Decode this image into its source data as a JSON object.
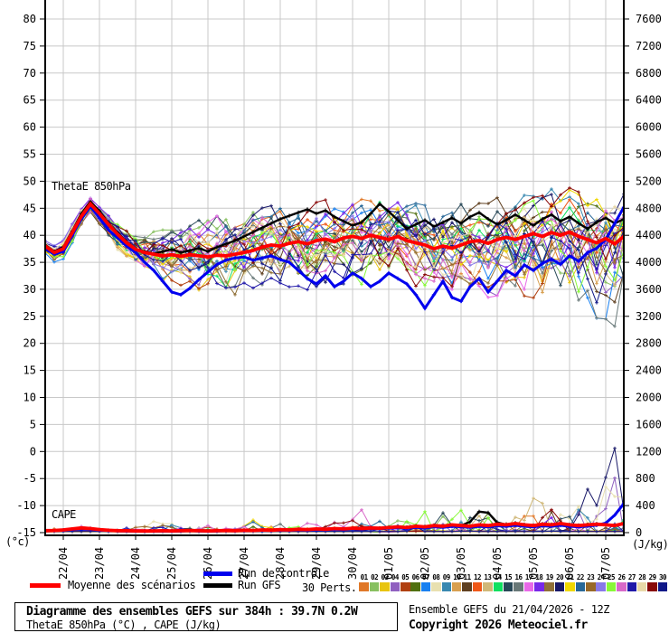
{
  "chart_data": {
    "type": "line",
    "title_annotations": {
      "thetae": "ThetaE 850hPa",
      "cape": "CAPE"
    },
    "x_axis": {
      "hours": 384,
      "step_hours": 6,
      "day_labels": [
        "22/04",
        "23/04",
        "24/04",
        "25/04",
        "26/04",
        "27/04",
        "28/04",
        "29/04",
        "30/04",
        "01/05",
        "02/05",
        "03/05",
        "04/05",
        "05/05",
        "06/05",
        "07/05"
      ]
    },
    "left_axis": {
      "unit": "(°c)",
      "min": -15,
      "max": 80,
      "step": 5
    },
    "right_axis": {
      "unit": "(J/kg)",
      "min": 0,
      "max": 7600,
      "step": 400
    },
    "grid": true,
    "legend_position": "bottom",
    "series": {
      "mean": {
        "label": "Moyenne des scénarios",
        "color": "#ff0000",
        "thetae": [
          38.0,
          36.8,
          37.5,
          40.5,
          43.5,
          45.8,
          44.0,
          42.0,
          40.2,
          38.6,
          37.4,
          36.8,
          36.5,
          36.2,
          36.4,
          36.1,
          36.4,
          36.2,
          36.0,
          36.3,
          36.2,
          36.5,
          36.8,
          37.2,
          37.8,
          38.2,
          38.0,
          38.5,
          38.8,
          38.4,
          39.0,
          39.3,
          38.8,
          39.5,
          39.8,
          39.4,
          40.0,
          39.6,
          39.2,
          39.8,
          39.0,
          38.6,
          38.2,
          37.5,
          38.0,
          37.6,
          38.2,
          38.8,
          39.0,
          38.5,
          39.2,
          39.6,
          39.2,
          39.8,
          40.3,
          39.8,
          40.5,
          40.0,
          40.6,
          39.8,
          39.2,
          38.6,
          39.4,
          38.4,
          39.8
        ],
        "cape": [
          30,
          32,
          40,
          55,
          70,
          60,
          45,
          35,
          30,
          28,
          25,
          24,
          26,
          28,
          25,
          28,
          32,
          28,
          25,
          28,
          32,
          30,
          36,
          32,
          40,
          36,
          44,
          40,
          50,
          45,
          55,
          50,
          60,
          55,
          65,
          60,
          70,
          65,
          75,
          85,
          75,
          95,
          85,
          105,
          95,
          115,
          105,
          95,
          115,
          105,
          125,
          115,
          135,
          115,
          105,
          125,
          115,
          135,
          115,
          105,
          115,
          125,
          115,
          105,
          135
        ]
      },
      "control": {
        "label": "Run de contrôle",
        "color": "#0000ee",
        "thetae": [
          37.5,
          36.5,
          37.0,
          40.0,
          43.0,
          45.3,
          43.2,
          41.0,
          39.5,
          38.0,
          36.8,
          35.0,
          33.5,
          31.5,
          29.5,
          29.0,
          30.2,
          31.8,
          33.2,
          34.6,
          35.4,
          35.8,
          36.0,
          35.4,
          35.8,
          36.2,
          35.5,
          35.0,
          33.5,
          32.0,
          31.0,
          32.5,
          30.5,
          31.5,
          33.0,
          32.0,
          30.5,
          31.5,
          33.0,
          32.0,
          31.0,
          29.0,
          26.5,
          29.0,
          31.5,
          28.5,
          27.8,
          30.5,
          32.0,
          29.5,
          31.5,
          33.5,
          32.5,
          34.5,
          33.5,
          34.8,
          35.6,
          34.6,
          36.2,
          35.2,
          36.8,
          37.6,
          39.2,
          42.2,
          45.2
        ],
        "cape": [
          25,
          28,
          35,
          45,
          55,
          48,
          38,
          30,
          26,
          24,
          22,
          20,
          22,
          24,
          22,
          24,
          28,
          24,
          22,
          24,
          28,
          26,
          30,
          28,
          34,
          30,
          38,
          34,
          42,
          38,
          46,
          42,
          50,
          46,
          55,
          50,
          60,
          55,
          65,
          70,
          62,
          78,
          70,
          85,
          78,
          92,
          85,
          78,
          92,
          85,
          100,
          92,
          108,
          92,
          85,
          100,
          92,
          108,
          92,
          85,
          95,
          110,
          140,
          260,
          430
        ]
      },
      "gfs": {
        "label": "Run GFS",
        "color": "#000000",
        "thetae": [
          38.2,
          37.0,
          37.8,
          40.8,
          44.0,
          46.2,
          44.5,
          42.2,
          40.5,
          38.8,
          37.5,
          37.0,
          36.6,
          37.0,
          37.4,
          36.8,
          37.2,
          37.6,
          37.0,
          37.8,
          38.4,
          39.0,
          39.8,
          40.6,
          41.4,
          42.2,
          43.0,
          43.6,
          44.2,
          44.8,
          44.0,
          44.6,
          43.4,
          42.6,
          41.8,
          42.4,
          44.0,
          45.8,
          44.4,
          42.8,
          41.2,
          42.0,
          42.8,
          41.6,
          42.4,
          43.2,
          42.2,
          43.4,
          44.2,
          43.0,
          42.0,
          42.8,
          43.8,
          42.8,
          41.8,
          43.0,
          43.8,
          42.6,
          43.4,
          42.2,
          41.2,
          42.4,
          43.2,
          42.2,
          43.0
        ],
        "cape": [
          28,
          30,
          38,
          50,
          62,
          54,
          42,
          32,
          28,
          26,
          24,
          22,
          24,
          26,
          24,
          26,
          30,
          26,
          24,
          26,
          30,
          28,
          34,
          30,
          38,
          34,
          42,
          38,
          46,
          42,
          52,
          48,
          58,
          54,
          64,
          58,
          70,
          64,
          76,
          86,
          78,
          98,
          88,
          108,
          98,
          110,
          105,
          160,
          310,
          295,
          150,
          118,
          140,
          118,
          108,
          128,
          118,
          140,
          118,
          108,
          118,
          130,
          118,
          108,
          138
        ]
      },
      "members": {
        "label": "30 Perts.",
        "count": 30,
        "ids": [
          "01",
          "02",
          "03",
          "04",
          "05",
          "06",
          "07",
          "08",
          "09",
          "10",
          "11",
          "12",
          "13",
          "14",
          "15",
          "16",
          "17",
          "18",
          "19",
          "20",
          "21",
          "22",
          "23",
          "24",
          "25",
          "26",
          "27",
          "28",
          "29",
          "30"
        ],
        "colors": [
          "#e07828",
          "#88c060",
          "#e8c410",
          "#9060c0",
          "#b04010",
          "#507010",
          "#1880f0",
          "#e8e0b0",
          "#3888b0",
          "#d8a050",
          "#604020",
          "#f05818",
          "#d0b878",
          "#10e060",
          "#284858",
          "#687878",
          "#e868e8",
          "#7828e8",
          "#907038",
          "#181868",
          "#f0d800",
          "#286898",
          "#986828",
          "#8878e8",
          "#88f838",
          "#d868c8",
          "#2018a8",
          "#e8d8a8",
          "#880808",
          "#101888"
        ]
      }
    }
  },
  "footer": {
    "title": "Diagramme des ensembles GEFS sur 384h : 39.7N 0.2W",
    "subtitle": "ThetaE 850hPa (°C) , CAPE (J/kg)",
    "run_info": "Ensemble GEFS du 21/04/2026 - 12Z",
    "copyright": "Copyright 2026 Meteociel.fr"
  }
}
